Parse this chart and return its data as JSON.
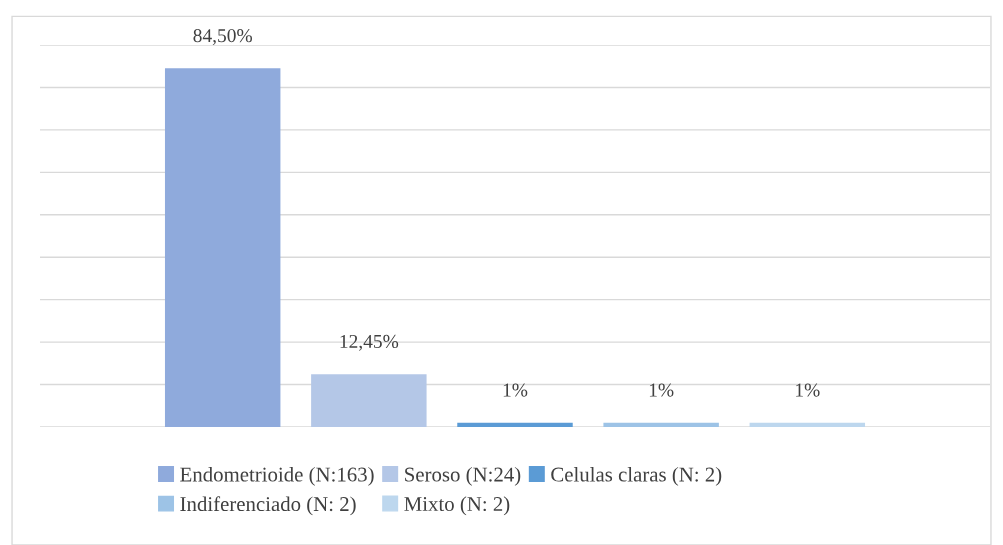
{
  "chart_data": {
    "type": "bar",
    "stacked": true,
    "categories": [
      null,
      null,
      null,
      null,
      null
    ],
    "series": [
      {
        "name": "Endometrioide (N:163)",
        "color": "#8faadc",
        "values": [
          84.5,
          null,
          null,
          null,
          null
        ],
        "value_labels": [
          "84,50%",
          null,
          null,
          null,
          null
        ]
      },
      {
        "name": "Seroso (N:24)",
        "color": "#b4c7e7",
        "values": [
          null,
          12.45,
          null,
          null,
          null
        ],
        "value_labels": [
          null,
          "12,45%",
          null,
          null,
          null
        ]
      },
      {
        "name": "Celulas claras (N: 2)",
        "color": "#5b9bd5",
        "values": [
          null,
          null,
          1,
          null,
          null
        ],
        "value_labels": [
          null,
          null,
          "1%",
          null,
          null
        ]
      },
      {
        "name": "Indiferenciado (N: 2)",
        "color": "#9dc3e6",
        "values": [
          null,
          null,
          null,
          1,
          null
        ],
        "value_labels": [
          null,
          null,
          null,
          "1%",
          null
        ]
      },
      {
        "name": "Mixto (N: 2)",
        "color": "#bdd7ee",
        "values": [
          null,
          null,
          null,
          null,
          1
        ],
        "value_labels": [
          null,
          null,
          null,
          null,
          "1%"
        ]
      }
    ],
    "ylim": [
      0,
      90
    ],
    "yticks": [
      {
        "value": 0,
        "label": null
      },
      {
        "value": 10,
        "label": null
      },
      {
        "value": 20,
        "label": null
      },
      {
        "value": 30,
        "label": null
      },
      {
        "value": 40,
        "label": null
      },
      {
        "value": 50,
        "label": null
      },
      {
        "value": 60,
        "label": null
      },
      {
        "value": 70,
        "label": null
      },
      {
        "value": 80,
        "label": null
      },
      {
        "value": 90,
        "label": null
      }
    ],
    "grid": "y",
    "legend": "bottom"
  }
}
